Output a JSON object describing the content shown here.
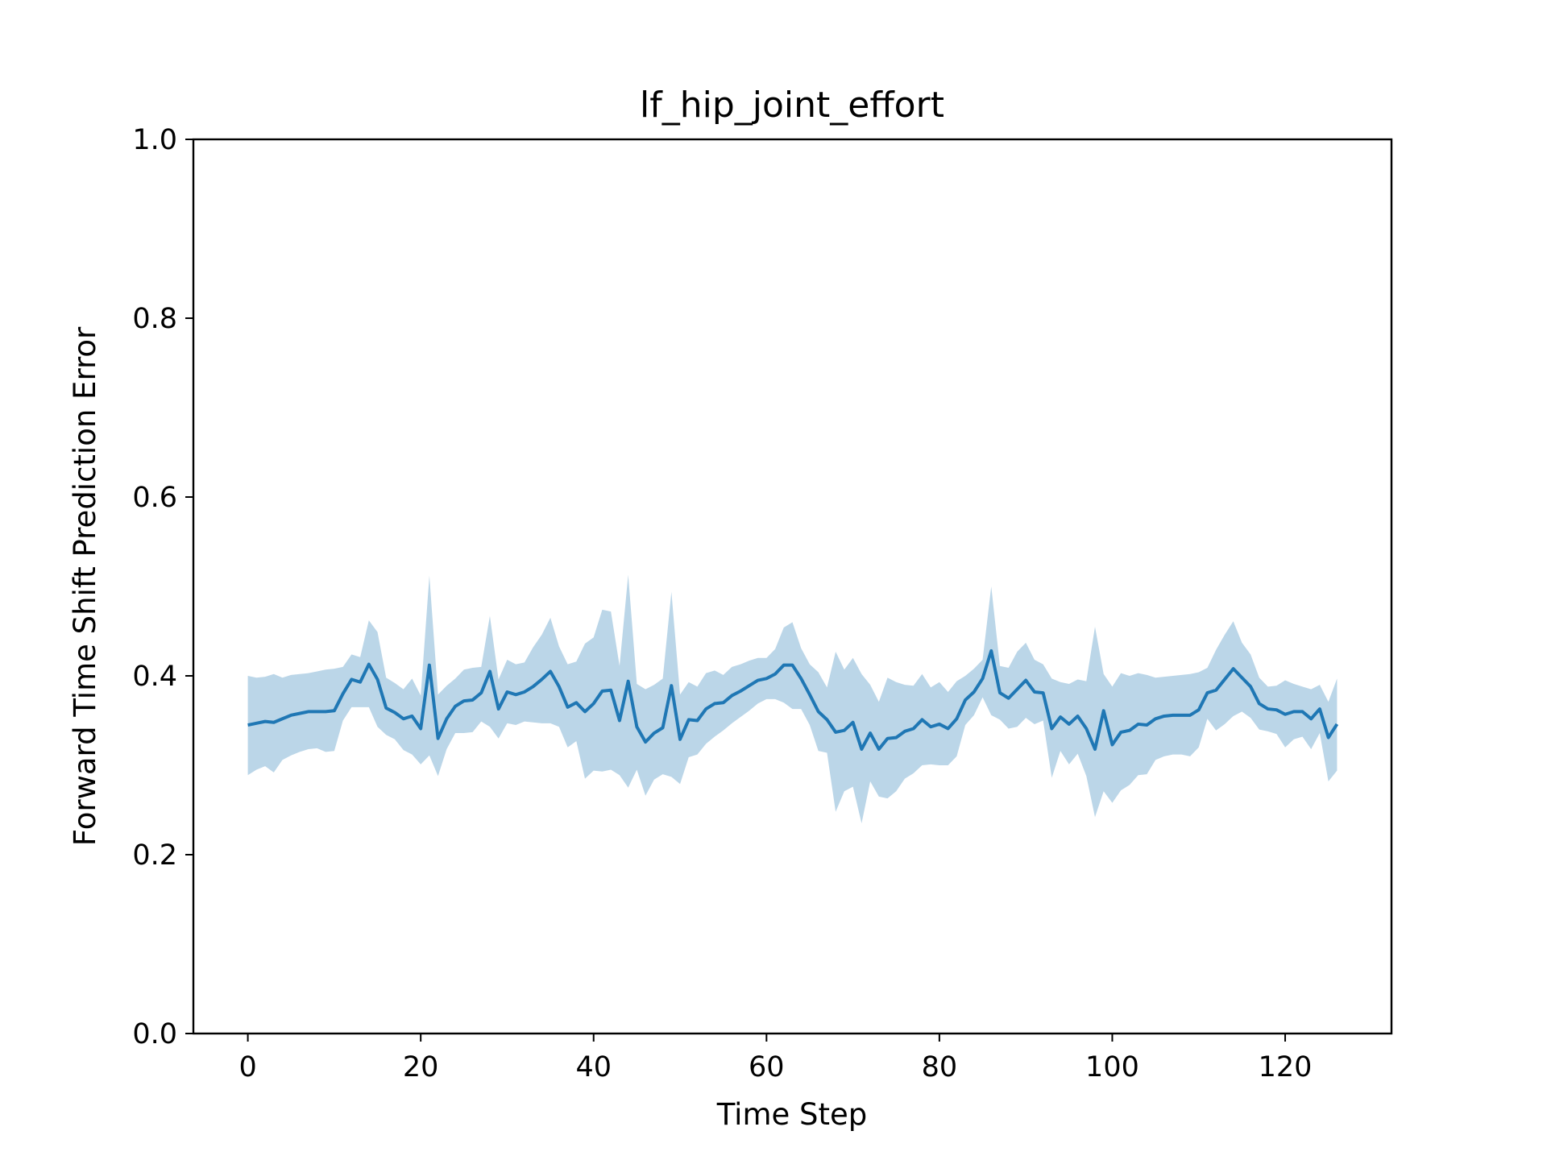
{
  "chart_data": {
    "type": "line",
    "title": "lf_hip_joint_effort",
    "xlabel": "Time Step",
    "ylabel": "Forward Time Shift Prediction Error",
    "xlim": [
      -6.3,
      132.3
    ],
    "ylim": [
      0.0,
      1.0
    ],
    "xticks": [
      0,
      20,
      40,
      60,
      80,
      100,
      120
    ],
    "xtick_labels": [
      "0",
      "20",
      "40",
      "60",
      "80",
      "100",
      "120"
    ],
    "yticks": [
      0.0,
      0.2,
      0.4,
      0.6,
      0.8,
      1.0
    ],
    "ytick_labels": [
      "0.0",
      "0.2",
      "0.4",
      "0.6",
      "0.8",
      "1.0"
    ],
    "grid": false,
    "legend": "none",
    "colors": {
      "line": "#1f77b4",
      "band": "#1f77b4",
      "band_opacity": 0.3,
      "axes": "#000000"
    },
    "series": [
      {
        "x": [
          0,
          1,
          2,
          3,
          4,
          5,
          6,
          7,
          8,
          9,
          10,
          11,
          12,
          13,
          14,
          15,
          16,
          17,
          18,
          19,
          20,
          21,
          22,
          23,
          24,
          25,
          26,
          27,
          28,
          29,
          30,
          31,
          32,
          33,
          34,
          35,
          36,
          37,
          38,
          39,
          40,
          41,
          42,
          43,
          44,
          45,
          46,
          47,
          48,
          49,
          50,
          51,
          52,
          53,
          54,
          55,
          56,
          57,
          58,
          59,
          60,
          61,
          62,
          63,
          64,
          65,
          66,
          67,
          68,
          69,
          70,
          71,
          72,
          73,
          74,
          75,
          76,
          77,
          78,
          79,
          80,
          81,
          82,
          83,
          84,
          85,
          86,
          87,
          88,
          89,
          90,
          91,
          92,
          93,
          94,
          95,
          96,
          97,
          98,
          99,
          100,
          101,
          102,
          103,
          104,
          105,
          106,
          107,
          108,
          109,
          110,
          111,
          112,
          113,
          114,
          115,
          116,
          117,
          118,
          119,
          120,
          121,
          122,
          123,
          124,
          125,
          126
        ],
        "mean": [
          0.345,
          0.347,
          0.349,
          0.348,
          0.352,
          0.356,
          0.358,
          0.36,
          0.36,
          0.36,
          0.361,
          0.38,
          0.396,
          0.393,
          0.413,
          0.396,
          0.364,
          0.359,
          0.352,
          0.355,
          0.341,
          0.412,
          0.33,
          0.352,
          0.366,
          0.372,
          0.373,
          0.381,
          0.405,
          0.363,
          0.382,
          0.379,
          0.382,
          0.388,
          0.396,
          0.405,
          0.388,
          0.365,
          0.37,
          0.36,
          0.369,
          0.383,
          0.384,
          0.35,
          0.394,
          0.343,
          0.326,
          0.336,
          0.342,
          0.389,
          0.329,
          0.351,
          0.35,
          0.363,
          0.369,
          0.37,
          0.378,
          0.383,
          0.389,
          0.395,
          0.397,
          0.402,
          0.412,
          0.412,
          0.397,
          0.379,
          0.36,
          0.351,
          0.337,
          0.339,
          0.348,
          0.318,
          0.336,
          0.318,
          0.33,
          0.331,
          0.338,
          0.341,
          0.351,
          0.343,
          0.346,
          0.341,
          0.352,
          0.373,
          0.382,
          0.397,
          0.428,
          0.381,
          0.375,
          0.385,
          0.395,
          0.382,
          0.381,
          0.341,
          0.354,
          0.346,
          0.355,
          0.341,
          0.318,
          0.361,
          0.323,
          0.337,
          0.339,
          0.346,
          0.345,
          0.352,
          0.355,
          0.356,
          0.356,
          0.356,
          0.362,
          0.381,
          0.384,
          0.396,
          0.408,
          0.398,
          0.388,
          0.369,
          0.363,
          0.362,
          0.357,
          0.36,
          0.36,
          0.352,
          0.363,
          0.331,
          0.346
        ],
        "upper": [
          0.4,
          0.398,
          0.399,
          0.402,
          0.398,
          0.401,
          0.402,
          0.403,
          0.405,
          0.407,
          0.408,
          0.41,
          0.424,
          0.421,
          0.462,
          0.449,
          0.398,
          0.392,
          0.385,
          0.397,
          0.378,
          0.512,
          0.379,
          0.389,
          0.397,
          0.407,
          0.409,
          0.41,
          0.467,
          0.396,
          0.418,
          0.413,
          0.415,
          0.432,
          0.446,
          0.465,
          0.433,
          0.413,
          0.416,
          0.436,
          0.443,
          0.474,
          0.472,
          0.411,
          0.513,
          0.391,
          0.385,
          0.39,
          0.397,
          0.494,
          0.379,
          0.393,
          0.388,
          0.403,
          0.406,
          0.401,
          0.41,
          0.413,
          0.417,
          0.42,
          0.42,
          0.43,
          0.454,
          0.46,
          0.431,
          0.413,
          0.404,
          0.387,
          0.427,
          0.407,
          0.42,
          0.402,
          0.39,
          0.371,
          0.398,
          0.393,
          0.39,
          0.389,
          0.402,
          0.387,
          0.393,
          0.382,
          0.394,
          0.4,
          0.408,
          0.418,
          0.5,
          0.411,
          0.409,
          0.427,
          0.437,
          0.418,
          0.413,
          0.397,
          0.393,
          0.391,
          0.396,
          0.394,
          0.455,
          0.402,
          0.388,
          0.403,
          0.4,
          0.403,
          0.401,
          0.398,
          0.399,
          0.4,
          0.401,
          0.402,
          0.404,
          0.409,
          0.429,
          0.446,
          0.461,
          0.437,
          0.424,
          0.398,
          0.388,
          0.389,
          0.395,
          0.391,
          0.388,
          0.385,
          0.39,
          0.371,
          0.397
        ],
        "lower": [
          0.289,
          0.295,
          0.299,
          0.292,
          0.306,
          0.311,
          0.315,
          0.318,
          0.319,
          0.315,
          0.316,
          0.35,
          0.365,
          0.365,
          0.365,
          0.343,
          0.334,
          0.329,
          0.317,
          0.312,
          0.301,
          0.311,
          0.288,
          0.318,
          0.336,
          0.336,
          0.337,
          0.349,
          0.343,
          0.33,
          0.347,
          0.345,
          0.349,
          0.348,
          0.347,
          0.347,
          0.343,
          0.32,
          0.327,
          0.285,
          0.294,
          0.293,
          0.295,
          0.289,
          0.275,
          0.295,
          0.266,
          0.284,
          0.29,
          0.287,
          0.279,
          0.309,
          0.312,
          0.324,
          0.332,
          0.339,
          0.347,
          0.354,
          0.361,
          0.369,
          0.374,
          0.374,
          0.37,
          0.363,
          0.363,
          0.345,
          0.316,
          0.314,
          0.248,
          0.271,
          0.276,
          0.235,
          0.282,
          0.265,
          0.263,
          0.271,
          0.285,
          0.291,
          0.3,
          0.301,
          0.3,
          0.3,
          0.31,
          0.345,
          0.356,
          0.376,
          0.356,
          0.351,
          0.341,
          0.343,
          0.353,
          0.346,
          0.35,
          0.286,
          0.316,
          0.301,
          0.313,
          0.288,
          0.242,
          0.271,
          0.258,
          0.272,
          0.278,
          0.289,
          0.29,
          0.306,
          0.31,
          0.312,
          0.312,
          0.31,
          0.32,
          0.352,
          0.339,
          0.346,
          0.355,
          0.36,
          0.353,
          0.34,
          0.338,
          0.335,
          0.32,
          0.329,
          0.332,
          0.318,
          0.336,
          0.282,
          0.294
        ]
      }
    ]
  }
}
